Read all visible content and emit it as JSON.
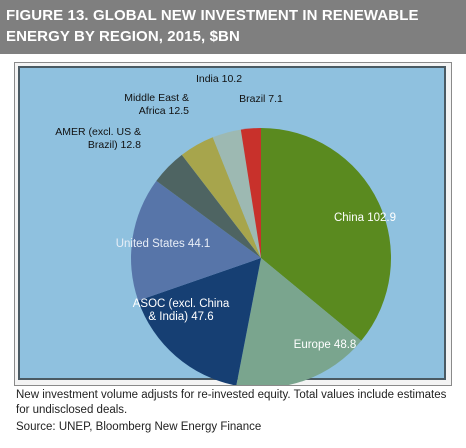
{
  "header": {
    "title": "FIGURE 13. GLOBAL NEW INVESTMENT IN RENEWABLE ENERGY BY REGION, 2015, $BN"
  },
  "footer": {
    "note": "New investment volume adjusts for re-invested equity. Total values include estimates for undisclosed deals.",
    "source": "Source: UNEP, Bloomberg New Energy Finance"
  },
  "colors": {
    "background": "#8fc1df",
    "plot_border": "#4a5a63"
  },
  "chart_data": {
    "type": "pie",
    "title": "",
    "unit": "$BN",
    "slices": [
      {
        "label": "China",
        "value": 102.9,
        "display": "China 102.9",
        "color": "#5a8a1f"
      },
      {
        "label": "Europe",
        "value": 48.8,
        "display": "Europe 48.8",
        "color": "#7aa58e"
      },
      {
        "label": "ASOC (excl. China & India)",
        "value": 47.6,
        "display": [
          "ASOC (excl. China",
          "& India) 47.6"
        ],
        "color": "#163f73"
      },
      {
        "label": "United States",
        "value": 44.1,
        "display": "United States 44.1",
        "color": "#5775a9"
      },
      {
        "label": "AMER (excl. US & Brazil)",
        "value": 12.8,
        "display": [
          "AMER (excl. US &",
          "Brazil) 12.8"
        ],
        "color": "#4e6462"
      },
      {
        "label": "Middle East & Africa",
        "value": 12.5,
        "display": [
          "Middle East &",
          "Africa 12.5"
        ],
        "color": "#a7a54c"
      },
      {
        "label": "India",
        "value": 10.2,
        "display": "India 10.2",
        "color": "#9db9b2"
      },
      {
        "label": "Brazil",
        "value": 7.1,
        "display": "Brazil 7.1",
        "color": "#c8312b"
      }
    ]
  }
}
